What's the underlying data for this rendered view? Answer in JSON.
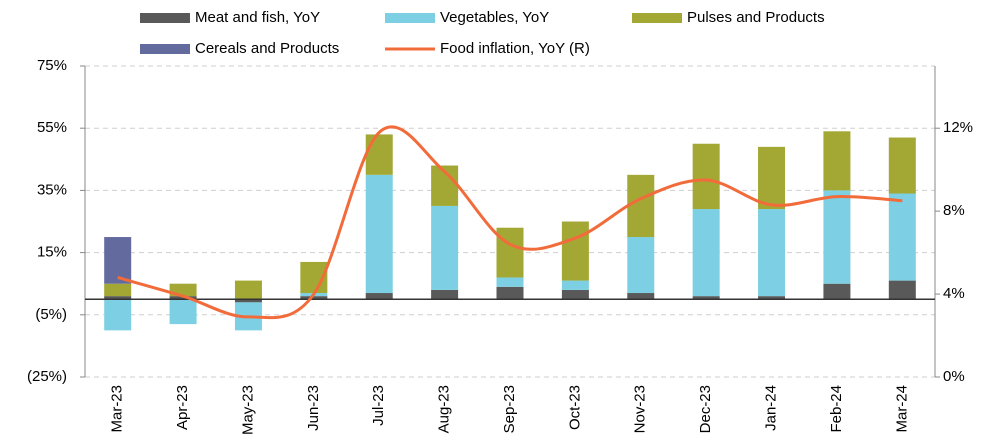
{
  "chart_data": {
    "type": "bar",
    "categories": [
      "Mar-23",
      "Apr-23",
      "May-23",
      "Jun-23",
      "Jul-23",
      "Aug-23",
      "Sep-23",
      "Oct-23",
      "Nov-23",
      "Dec-23",
      "Jan-24",
      "Feb-24",
      "Mar-24"
    ],
    "series": [
      {
        "name": "Meat and fish, YoY",
        "color": "#595959",
        "values": [
          1,
          1,
          -1,
          1,
          2,
          3,
          4,
          3,
          2,
          1,
          1,
          5,
          6
        ]
      },
      {
        "name": "Vegetables, YoY",
        "color": "#7dd0e3",
        "values": [
          -10,
          -8,
          -9,
          1,
          38,
          27,
          3,
          3,
          18,
          28,
          28,
          30,
          28
        ]
      },
      {
        "name": "Pulses and Products",
        "color": "#a3a834",
        "values": [
          4,
          4,
          6,
          10,
          13,
          13,
          16,
          19,
          20,
          21,
          20,
          19,
          18
        ]
      },
      {
        "name": "Cereals and Products",
        "color": "#636a9e",
        "values": [
          15,
          0,
          0,
          0,
          0,
          0,
          0,
          0,
          0,
          0,
          0,
          0,
          0
        ]
      },
      {
        "name": "Food inflation, YoY (R)",
        "color": "#f26b3a",
        "type": "line",
        "axis": "y2",
        "values": [
          4.8,
          3.9,
          2.9,
          4.0,
          11.8,
          9.9,
          6.4,
          6.7,
          8.6,
          9.5,
          8.3,
          8.7,
          8.5
        ]
      }
    ],
    "ylim": [
      -25,
      75
    ],
    "yticks": [
      {
        "value": -25,
        "label": "(25%)"
      },
      {
        "value": -5,
        "label": "(5%)"
      },
      {
        "value": 15,
        "label": "15%"
      },
      {
        "value": 35,
        "label": "35%"
      },
      {
        "value": 55,
        "label": "55%"
      },
      {
        "value": 75,
        "label": "75%"
      }
    ],
    "y2lim": [
      0,
      15
    ],
    "y2ticks": [
      {
        "value": 0,
        "label": "0%"
      },
      {
        "value": 4,
        "label": "4%"
      },
      {
        "value": 8,
        "label": "8%"
      },
      {
        "value": 12,
        "label": "12%"
      }
    ],
    "grid": true
  }
}
